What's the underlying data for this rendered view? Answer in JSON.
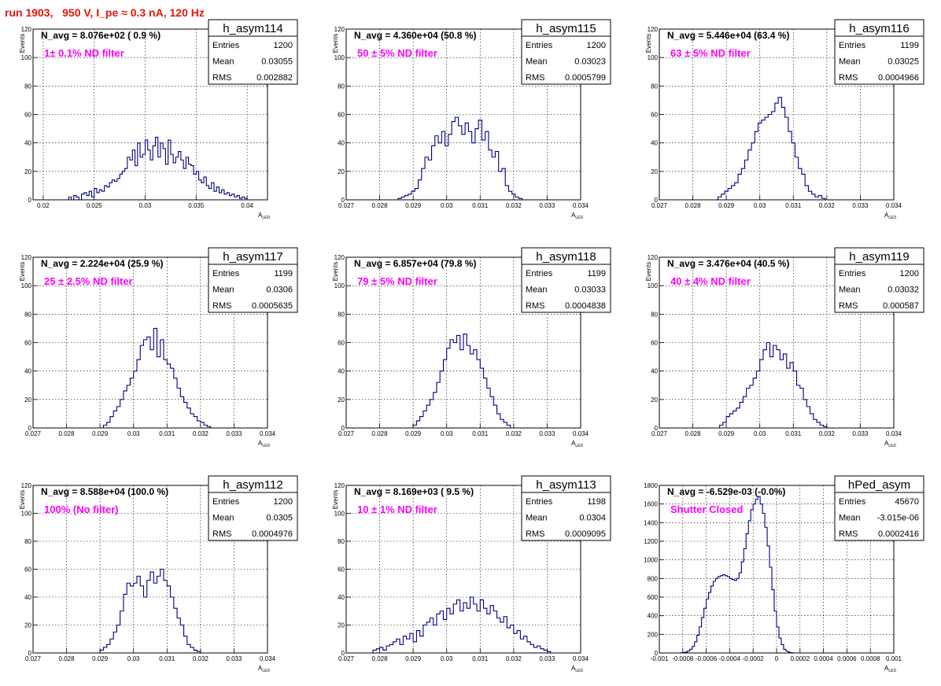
{
  "title": "run 1903,   950 V, I_pe ≈ 0.3 nA, 120 Hz",
  "chart_data": [
    {
      "type": "histogram",
      "hist_name": "h_asym114",
      "navg_label": "N_avg = 8.076e+02 ( 0.9 %)",
      "filter_label": "1± 0.1% ND filter",
      "stats": {
        "Entries": "1200",
        "Mean": "0.03055",
        "RMS": "0.002882"
      },
      "xlabel": "A",
      "xlabel_sub": "LED",
      "ylabel": "Events",
      "xlim": [
        0.019,
        0.042
      ],
      "ylim": [
        0,
        120
      ],
      "xticks": [
        "0.02",
        "0.025",
        "0.03",
        "0.035",
        "0.04"
      ],
      "xtick_values": [
        0.02,
        0.025,
        0.03,
        0.035,
        0.04
      ],
      "yticks": [
        0,
        20,
        40,
        60,
        80,
        100,
        120
      ],
      "bins": {
        "start": 0.0225,
        "width": 0.00025,
        "counts": [
          2,
          0,
          3,
          2,
          0,
          4,
          5,
          3,
          6,
          2,
          8,
          5,
          7,
          6,
          10,
          9,
          12,
          14,
          13,
          15,
          18,
          20,
          22,
          30,
          28,
          35,
          24,
          40,
          30,
          32,
          42,
          35,
          28,
          38,
          44,
          30,
          40,
          36,
          25,
          42,
          32,
          26,
          30,
          34,
          28,
          22,
          30,
          25,
          24,
          18,
          20,
          14,
          12,
          16,
          10,
          8,
          12,
          6,
          9,
          5,
          7,
          4,
          5,
          3,
          4,
          2,
          3,
          1,
          2,
          1
        ]
      }
    },
    {
      "type": "histogram",
      "hist_name": "h_asym115",
      "navg_label": "N_avg = 4.360e+04 (50.8 %)",
      "filter_label": "50 ± 5% ND filter",
      "stats": {
        "Entries": "1200",
        "Mean": "0.03023",
        "RMS": "0.0005799"
      },
      "xlabel": "A",
      "xlabel_sub": "LED",
      "ylabel": "Events",
      "xlim": [
        0.027,
        0.034
      ],
      "ylim": [
        0,
        120
      ],
      "xticks": [
        "0.027",
        "0.028",
        "0.029",
        "0.03",
        "0.031",
        "0.032",
        "0.033",
        "0.034"
      ],
      "xtick_values": [
        0.027,
        0.028,
        0.029,
        0.03,
        0.031,
        0.032,
        0.033,
        0.034
      ],
      "yticks": [
        0,
        20,
        40,
        60,
        80,
        100,
        120
      ],
      "bins": {
        "start": 0.02855,
        "width": 0.0001,
        "counts": [
          1,
          2,
          3,
          4,
          6,
          8,
          14,
          22,
          30,
          28,
          38,
          45,
          40,
          48,
          38,
          46,
          55,
          58,
          52,
          46,
          54,
          48,
          40,
          50,
          56,
          42,
          48,
          35,
          30,
          34,
          20,
          22,
          10,
          6,
          4,
          2,
          1
        ]
      }
    },
    {
      "type": "histogram",
      "hist_name": "h_asym116",
      "navg_label": "N_avg = 5.446e+04 (63.4 %)",
      "filter_label": "63 ± 5% ND filter",
      "stats": {
        "Entries": "1199",
        "Mean": "0.03025",
        "RMS": "0.0004966"
      },
      "xlabel": "A",
      "xlabel_sub": "LED",
      "ylabel": "Events",
      "xlim": [
        0.027,
        0.034
      ],
      "ylim": [
        0,
        120
      ],
      "xticks": [
        "0.027",
        "0.028",
        "0.029",
        "0.03",
        "0.031",
        "0.032",
        "0.033",
        "0.034"
      ],
      "xtick_values": [
        0.027,
        0.028,
        0.029,
        0.03,
        0.031,
        0.032,
        0.033,
        0.034
      ],
      "yticks": [
        0,
        20,
        40,
        60,
        80,
        100,
        120
      ],
      "bins": {
        "start": 0.02875,
        "width": 0.0001,
        "counts": [
          2,
          4,
          6,
          8,
          10,
          12,
          18,
          22,
          28,
          35,
          40,
          48,
          54,
          56,
          58,
          60,
          62,
          68,
          72,
          65,
          58,
          48,
          40,
          30,
          22,
          18,
          10,
          6,
          4,
          2,
          3,
          1
        ]
      }
    },
    {
      "type": "histogram",
      "hist_name": "h_asym117",
      "navg_label": "N_avg = 2.224e+04 (25.9 %)",
      "filter_label": "25 ± 2.5% ND filter",
      "stats": {
        "Entries": "1199",
        "Mean": "0.0306",
        "RMS": "0.0005635"
      },
      "xlabel": "A",
      "xlabel_sub": "LED",
      "ylabel": "Events",
      "xlim": [
        0.027,
        0.034
      ],
      "ylim": [
        0,
        120
      ],
      "xticks": [
        "0.027",
        "0.028",
        "0.029",
        "0.03",
        "0.031",
        "0.032",
        "0.033",
        "0.034"
      ],
      "xtick_values": [
        0.027,
        0.028,
        0.029,
        0.03,
        0.031,
        0.032,
        0.033,
        0.034
      ],
      "yticks": [
        0,
        20,
        40,
        60,
        80,
        100,
        120
      ],
      "bins": {
        "start": 0.0291,
        "width": 0.0001,
        "counts": [
          2,
          4,
          8,
          12,
          15,
          20,
          26,
          30,
          35,
          40,
          48,
          58,
          62,
          64,
          55,
          70,
          50,
          62,
          48,
          45,
          42,
          35,
          28,
          22,
          18,
          14,
          10,
          8,
          5,
          4,
          2,
          1
        ]
      }
    },
    {
      "type": "histogram",
      "hist_name": "h_asym118",
      "navg_label": "N_avg = 6.857e+04 (79.8 %)",
      "filter_label": "79 ± 5% ND filter",
      "stats": {
        "Entries": "1199",
        "Mean": "0.03033",
        "RMS": "0.0004838"
      },
      "xlabel": "A",
      "xlabel_sub": "LED",
      "ylabel": "Events",
      "xlim": [
        0.027,
        0.034
      ],
      "ylim": [
        0,
        120
      ],
      "xticks": [
        "0.027",
        "0.028",
        "0.029",
        "0.03",
        "0.031",
        "0.032",
        "0.033",
        "0.034"
      ],
      "xtick_values": [
        0.027,
        0.028,
        0.029,
        0.03,
        0.031,
        0.032,
        0.033,
        0.034
      ],
      "yticks": [
        0,
        20,
        40,
        60,
        80,
        100,
        120
      ],
      "bins": {
        "start": 0.029,
        "width": 0.0001,
        "counts": [
          2,
          5,
          8,
          12,
          16,
          20,
          25,
          32,
          40,
          48,
          56,
          62,
          60,
          65,
          55,
          66,
          58,
          52,
          55,
          48,
          42,
          35,
          28,
          22,
          16,
          10,
          6,
          4,
          2
        ]
      }
    },
    {
      "type": "histogram",
      "hist_name": "h_asym119",
      "navg_label": "N_avg = 3.476e+04 (40.5 %)",
      "filter_label": "40 ± 4% ND filter",
      "stats": {
        "Entries": "1200",
        "Mean": "0.03032",
        "RMS": "0.000587"
      },
      "xlabel": "A",
      "xlabel_sub": "LED",
      "ylabel": "Events",
      "xlim": [
        0.027,
        0.034
      ],
      "ylim": [
        0,
        120
      ],
      "xticks": [
        "0.027",
        "0.028",
        "0.029",
        "0.03",
        "0.031",
        "0.032",
        "0.033",
        "0.034"
      ],
      "xtick_values": [
        0.027,
        0.028,
        0.029,
        0.03,
        0.031,
        0.032,
        0.033,
        0.034
      ],
      "yticks": [
        0,
        20,
        40,
        60,
        80,
        100,
        120
      ],
      "bins": {
        "start": 0.0288,
        "width": 0.0001,
        "counts": [
          2,
          4,
          8,
          10,
          12,
          14,
          18,
          22,
          28,
          30,
          35,
          40,
          48,
          55,
          60,
          50,
          58,
          55,
          48,
          52,
          42,
          46,
          40,
          30,
          28,
          20,
          15,
          10,
          6,
          4,
          2,
          1
        ]
      }
    },
    {
      "type": "histogram",
      "hist_name": "h_asym112",
      "navg_label": "N_avg = 8.588e+04 (100.0 %)",
      "filter_label": "100% (No filter)",
      "stats": {
        "Entries": "1200",
        "Mean": "0.0305",
        "RMS": "0.0004976"
      },
      "xlabel": "A",
      "xlabel_sub": "LED",
      "ylabel": "Events",
      "xlim": [
        0.027,
        0.034
      ],
      "ylim": [
        0,
        120
      ],
      "xticks": [
        "0.027",
        "0.028",
        "0.029",
        "0.03",
        "0.031",
        "0.032",
        "0.033",
        "0.034"
      ],
      "xtick_values": [
        0.027,
        0.028,
        0.029,
        0.03,
        0.031,
        0.032,
        0.033,
        0.034
      ],
      "yticks": [
        0,
        20,
        40,
        60,
        80,
        100,
        120
      ],
      "bins": {
        "start": 0.029,
        "width": 0.0001,
        "counts": [
          2,
          4,
          6,
          10,
          15,
          20,
          30,
          42,
          50,
          48,
          50,
          55,
          48,
          40,
          52,
          58,
          50,
          55,
          60,
          52,
          48,
          40,
          32,
          25,
          20,
          12,
          6,
          4,
          2,
          1
        ]
      }
    },
    {
      "type": "histogram",
      "hist_name": "h_asym113",
      "navg_label": "N_avg = 8.169e+03 ( 9.5 %)",
      "filter_label": "10 ± 1% ND filter",
      "stats": {
        "Entries": "1198",
        "Mean": "0.0304",
        "RMS": "0.0009095"
      },
      "xlabel": "A",
      "xlabel_sub": "LED",
      "ylabel": "Events",
      "xlim": [
        0.027,
        0.034
      ],
      "ylim": [
        0,
        120
      ],
      "xticks": [
        "0.027",
        "0.028",
        "0.029",
        "0.03",
        "0.031",
        "0.032",
        "0.033",
        "0.034"
      ],
      "xtick_values": [
        0.027,
        0.028,
        0.029,
        0.03,
        0.031,
        0.032,
        0.033,
        0.034
      ],
      "yticks": [
        0,
        20,
        40,
        60,
        80,
        100,
        120
      ],
      "bins": {
        "start": 0.0278,
        "width": 0.0001,
        "counts": [
          2,
          3,
          4,
          2,
          5,
          6,
          8,
          10,
          6,
          12,
          10,
          14,
          8,
          16,
          12,
          20,
          22,
          25,
          20,
          28,
          30,
          24,
          32,
          28,
          35,
          38,
          30,
          36,
          32,
          40,
          35,
          30,
          38,
          32,
          28,
          34,
          30,
          25,
          22,
          26,
          18,
          20,
          14,
          16,
          10,
          12,
          8,
          6,
          4,
          5,
          3,
          2,
          1
        ]
      }
    },
    {
      "type": "histogram",
      "hist_name": "hPed_asym",
      "navg_label": "N_avg = -6.529e-03 (-0.0%)",
      "filter_label": "Shutter Closed",
      "stats": {
        "Entries": "45670",
        "Mean": "-3.015e-06",
        "RMS": "0.0002416"
      },
      "xlabel": "A",
      "xlabel_sub": "LED",
      "ylabel": "",
      "xlim": [
        -0.001,
        0.001
      ],
      "ylim": [
        0,
        1800
      ],
      "xticks": [
        "-0.001",
        "-0.0008",
        "-0.0006",
        "-0.0004",
        "-0.0002",
        "0",
        "0.0002",
        "0.0004",
        "0.0006",
        "0.0008",
        "0.001"
      ],
      "xtick_values": [
        -0.001,
        -0.0008,
        -0.0006,
        -0.0004,
        -0.0002,
        0,
        0.0002,
        0.0004,
        0.0006,
        0.0008,
        0.001
      ],
      "yticks": [
        0,
        200,
        400,
        600,
        800,
        1000,
        1200,
        1400,
        1600,
        1800
      ],
      "bins": {
        "start": -0.00082,
        "width": 2e-05,
        "counts": [
          2,
          5,
          10,
          20,
          40,
          70,
          120,
          190,
          280,
          380,
          480,
          580,
          650,
          720,
          770,
          800,
          820,
          830,
          840,
          830,
          820,
          800,
          790,
          780,
          800,
          860,
          980,
          1120,
          1280,
          1420,
          1540,
          1600,
          1650,
          1680,
          1600,
          1500,
          1350,
          1150,
          920,
          680,
          450,
          280,
          160,
          90,
          40,
          20,
          8,
          3
        ]
      }
    }
  ]
}
